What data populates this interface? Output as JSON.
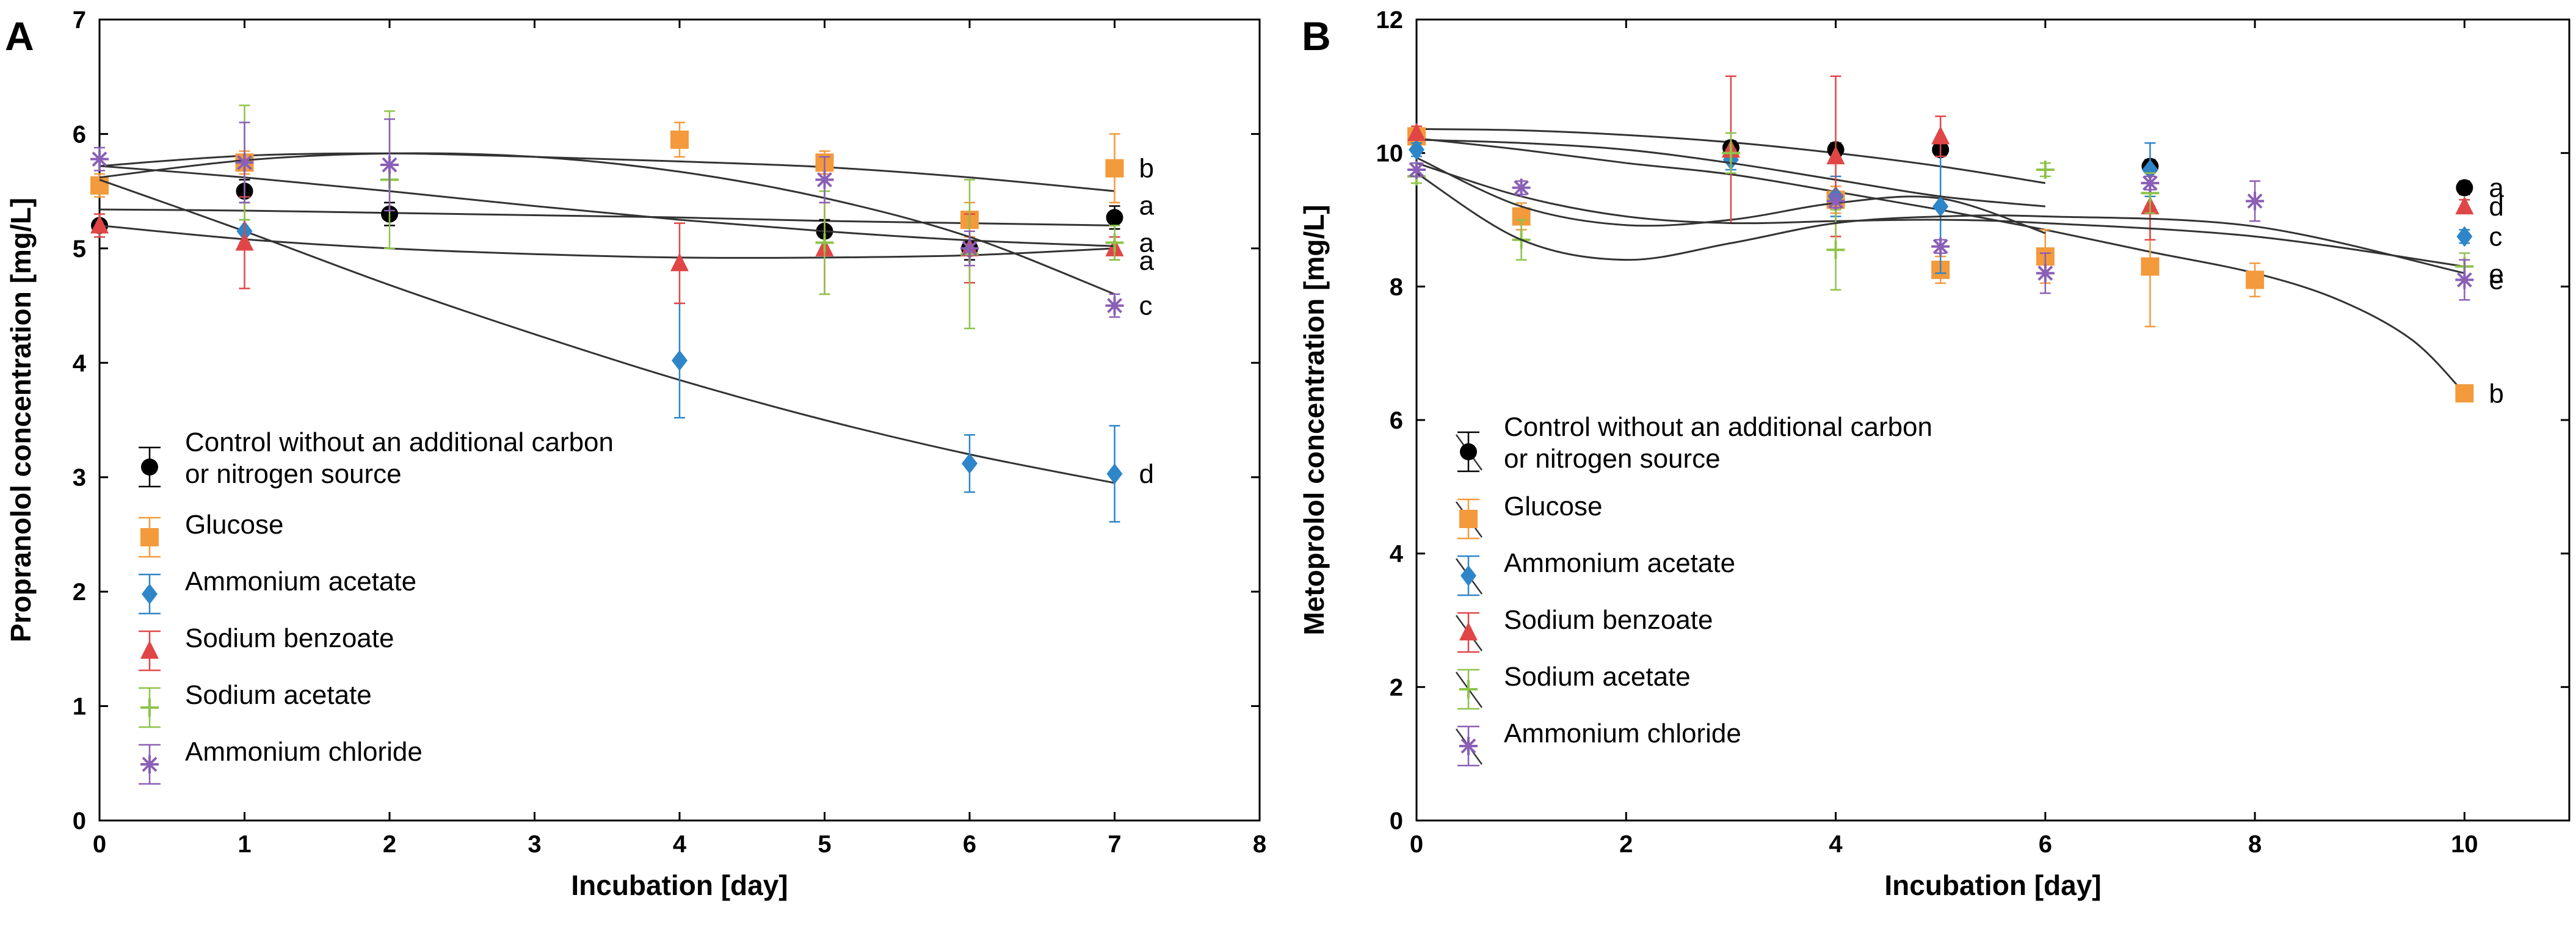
{
  "chart_data": [
    {
      "type": "scatter",
      "panel": "A",
      "xlabel": "Incubation [day]",
      "ylabel": "Propranolol concentration [mg/L]",
      "xlim": [
        0,
        8
      ],
      "ylim": [
        0,
        7
      ],
      "xticks": [
        "0",
        "1",
        "2",
        "3",
        "4",
        "5",
        "6",
        "7",
        "8"
      ],
      "yticks": [
        "0",
        "1",
        "2",
        "3",
        "4",
        "5",
        "6",
        "7"
      ],
      "legend_position": "lower-left",
      "series": [
        {
          "name": "Control without an additional carbon",
          "name2": "or nitrogen source",
          "color": "#000000",
          "marker": "circle",
          "x": [
            0,
            1,
            2,
            5,
            6,
            7
          ],
          "y": [
            5.2,
            5.5,
            5.3,
            5.15,
            5.0,
            5.27
          ],
          "err": [
            0.05,
            0.1,
            0.1,
            0.1,
            0.1,
            0.1
          ],
          "fit": [
            5.34,
            5.33,
            5.31,
            5.29,
            5.27,
            5.24,
            5.22,
            5.2
          ],
          "sig": "a"
        },
        {
          "name": "Glucose",
          "color": "#f39a3c",
          "marker": "square",
          "x": [
            0,
            1,
            4,
            5,
            6,
            7
          ],
          "y": [
            5.55,
            5.75,
            5.95,
            5.75,
            5.25,
            5.7
          ],
          "err": [
            0.1,
            0.1,
            0.15,
            0.1,
            0.15,
            0.3
          ],
          "fit": [
            5.72,
            5.81,
            5.83,
            5.8,
            5.76,
            5.71,
            5.62,
            5.5
          ],
          "sig": "b"
        },
        {
          "name": "Ammonium acetate",
          "color": "#2e86c8",
          "marker": "diamond",
          "x": [
            1,
            4,
            6,
            7
          ],
          "y": [
            5.15,
            4.02,
            3.12,
            3.03
          ],
          "err": [
            0.1,
            0.5,
            0.25,
            0.42
          ],
          "fit": [
            5.6,
            5.15,
            4.68,
            4.25,
            3.85,
            3.5,
            3.2,
            2.95
          ],
          "sig": "d"
        },
        {
          "name": "Sodium benzoate",
          "color": "#e04646",
          "marker": "triangle",
          "x": [
            0,
            1,
            4,
            5,
            6,
            7
          ],
          "y": [
            5.2,
            5.05,
            4.87,
            5.0,
            5.0,
            5.0
          ],
          "err": [
            0.1,
            0.4,
            0.35,
            0.4,
            0.3,
            0.1
          ],
          "fit": [
            5.2,
            5.08,
            5.0,
            4.95,
            4.92,
            4.92,
            4.94,
            5.0
          ],
          "sig": "a"
        },
        {
          "name": "Sodium acetate",
          "color": "#8dc34a",
          "marker": "plus",
          "x": [
            1,
            2,
            5,
            6,
            7
          ],
          "y": [
            5.75,
            5.6,
            5.05,
            4.95,
            5.05
          ],
          "err": [
            0.5,
            0.6,
            0.45,
            0.65,
            0.15
          ],
          "fit": [
            5.72,
            5.62,
            5.5,
            5.37,
            5.25,
            5.15,
            5.07,
            5.02
          ],
          "sig": "a"
        },
        {
          "name": "Ammonium chloride",
          "color": "#8a5fb5",
          "marker": "asterisk",
          "x": [
            0,
            1,
            2,
            5,
            6,
            7
          ],
          "y": [
            5.78,
            5.75,
            5.73,
            5.6,
            5.0,
            4.5
          ],
          "err": [
            0.1,
            0.35,
            0.4,
            0.2,
            0.15,
            0.1
          ],
          "fit": [
            5.62,
            5.77,
            5.83,
            5.8,
            5.67,
            5.44,
            5.1,
            4.6
          ],
          "sig": "c"
        }
      ]
    },
    {
      "type": "scatter",
      "panel": "B",
      "xlabel": "Incubation [day]",
      "ylabel": "Metoprolol concentration [mg/L]",
      "xlim": [
        0,
        11
      ],
      "ylim": [
        0,
        12
      ],
      "xticks": [
        "0",
        "2",
        "4",
        "6",
        "8",
        "10"
      ],
      "yticks": [
        "0",
        "2",
        "4",
        "6",
        "8",
        "10",
        "12"
      ],
      "legend_position": "lower-left",
      "series": [
        {
          "name": "Control without an additional carbon",
          "name2": "or nitrogen source",
          "color": "#000000",
          "marker": "circle",
          "x": [
            3,
            4,
            5,
            7,
            10
          ],
          "y": [
            10.08,
            10.05,
            10.05,
            9.8,
            9.48
          ],
          "err": [
            0.1,
            0.1,
            0.1,
            0.1,
            0.1
          ],
          "fit": [
            10.36,
            10.34,
            10.27,
            10.16,
            10.0,
            9.8,
            9.55
          ],
          "sig": "a"
        },
        {
          "name": "Glucose",
          "color": "#f39a3c",
          "marker": "square",
          "x": [
            0,
            1,
            4,
            5,
            6,
            7,
            8,
            10
          ],
          "y": [
            10.25,
            9.05,
            9.3,
            8.25,
            8.45,
            8.3,
            8.1,
            6.4
          ],
          "err": [
            0.1,
            0.2,
            0.2,
            0.2,
            0.4,
            0.9,
            0.25,
            0.1
          ],
          "fit": [
            10.22,
            10.05,
            9.85,
            9.68,
            9.42,
            9.15,
            8.85,
            8.52,
            8.2
          ],
          "fitx": [
            0,
            1,
            2,
            3,
            4,
            5,
            6,
            7,
            8
          ],
          "fit_tail": [
            7.8,
            7.2,
            6.4
          ],
          "fit_tail_x": [
            8.8,
            9.5,
            10
          ],
          "sig": "b"
        },
        {
          "name": "Ammonium acetate",
          "color": "#2e86c8",
          "marker": "diamond",
          "x": [
            0,
            3,
            4,
            5,
            7,
            10
          ],
          "y": [
            10.05,
            9.9,
            9.35,
            9.2,
            9.75,
            8.75
          ],
          "err": [
            0.1,
            0.15,
            0.3,
            1.0,
            0.4,
            0.1
          ],
          "fit": [
            9.93,
            9.2,
            8.92,
            9.0,
            9.25,
            9.32,
            8.8
          ],
          "sig": "c"
        },
        {
          "name": "Sodium benzoate",
          "color": "#e04646",
          "marker": "triangle",
          "x": [
            0,
            3,
            4,
            5,
            7,
            10
          ],
          "y": [
            10.3,
            10.05,
            9.95,
            10.25,
            9.2,
            9.2
          ],
          "err": [
            0.1,
            1.1,
            1.2,
            0.3,
            0.5,
            0.1
          ],
          "fit": [
            10.2,
            10.15,
            10.05,
            9.85,
            9.6,
            9.35,
            9.2
          ],
          "sig": "d"
        },
        {
          "name": "Sodium acetate",
          "color": "#8dc34a",
          "marker": "plus",
          "x": [
            0,
            1,
            3,
            4,
            6,
            7,
            10
          ],
          "y": [
            9.65,
            8.7,
            10.0,
            8.55,
            9.75,
            9.4,
            8.3
          ],
          "err": [
            0.1,
            0.3,
            0.3,
            0.6,
            0.1,
            0.3,
            0.2
          ],
          "fit": [
            9.85,
            9.35,
            9.05,
            8.95,
            8.98,
            9.0,
            8.95,
            8.75,
            8.3
          ],
          "fitx": [
            0,
            1,
            2,
            3,
            4,
            5,
            6,
            8,
            10
          ],
          "sig": "e"
        },
        {
          "name": "Ammonium chloride",
          "color": "#8a5fb5",
          "marker": "asterisk",
          "x": [
            0,
            1,
            4,
            5,
            6,
            7,
            8,
            10
          ],
          "y": [
            9.75,
            9.48,
            9.28,
            8.6,
            8.2,
            9.55,
            9.28,
            8.1
          ],
          "err": [
            0.1,
            0.1,
            0.1,
            0.1,
            0.3,
            0.1,
            0.3,
            0.3
          ],
          "fit": [
            9.7,
            8.7,
            8.4,
            8.65,
            8.95,
            9.05,
            9.05,
            8.9,
            8.2
          ],
          "fitx": [
            0,
            1,
            2,
            3,
            4,
            5,
            6,
            8,
            10
          ],
          "sig": "e"
        }
      ]
    }
  ]
}
